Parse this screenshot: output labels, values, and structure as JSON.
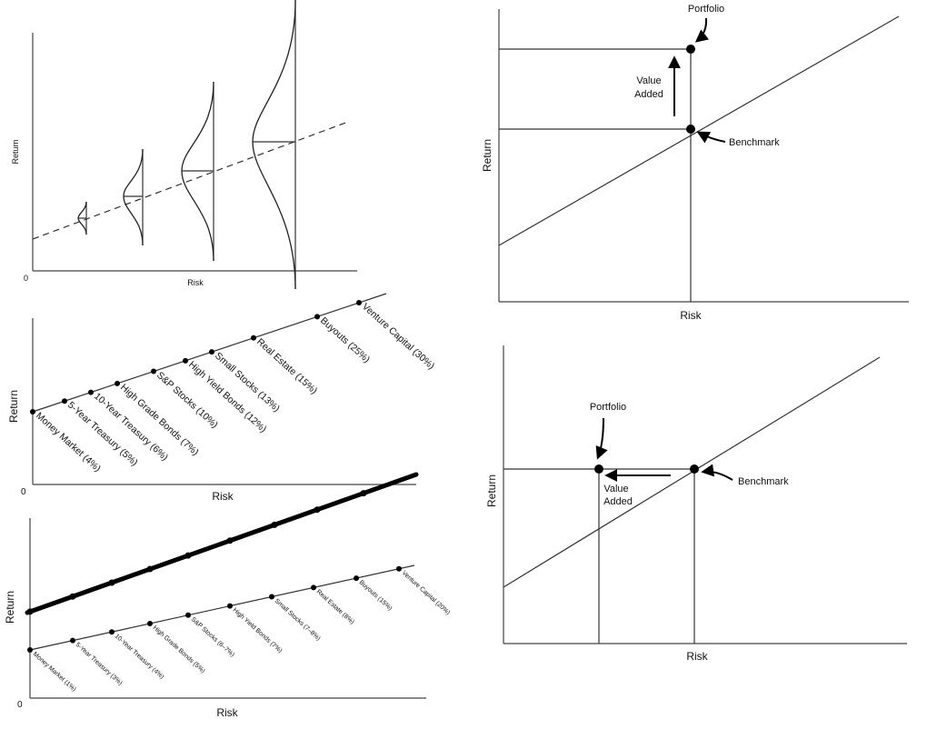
{
  "panels": {
    "distribution": {
      "ylabel": "Return",
      "xlabel": "Risk",
      "origin": "0"
    },
    "asset_line": {
      "ylabel": "Return",
      "xlabel": "Risk",
      "origin": "0",
      "assets": [
        "Money Market (4%)",
        "5-Year Treasury (5%)",
        "10-Year Treasury (6%)",
        "High Grade Bonds (7%)",
        "S&P Stocks (10%)",
        "High Yield Bonds (12%)",
        "Small Stocks (13%)",
        "Real Estate (15%)",
        "Buyouts (25%)",
        "Venture Capital (30%)"
      ]
    },
    "two_lines": {
      "ylabel": "Return",
      "xlabel": "Risk",
      "origin": "0",
      "assets": [
        "Money Market (1%)",
        "5-Year Treasury (3%)",
        "10-Year Treasury (4%)",
        "High Grade Bonds (5%)",
        "S&P Stocks (6–7%)",
        "High Yield Bonds (7%)",
        "Small Stocks (7–8%)",
        "Real Estate (8%)",
        "Buyouts (15%)",
        "Venture Capital (20%)"
      ]
    },
    "value_added_return": {
      "ylabel": "Return",
      "xlabel": "Risk",
      "portfolio": "Portfolio",
      "benchmark": "Benchmark",
      "value_added_1": "Value",
      "value_added_2": "Added"
    },
    "value_added_risk": {
      "ylabel": "Return",
      "xlabel": "Risk",
      "portfolio": "Portfolio",
      "benchmark": "Benchmark",
      "value_added_1": "Value",
      "value_added_2": "Added"
    }
  }
}
